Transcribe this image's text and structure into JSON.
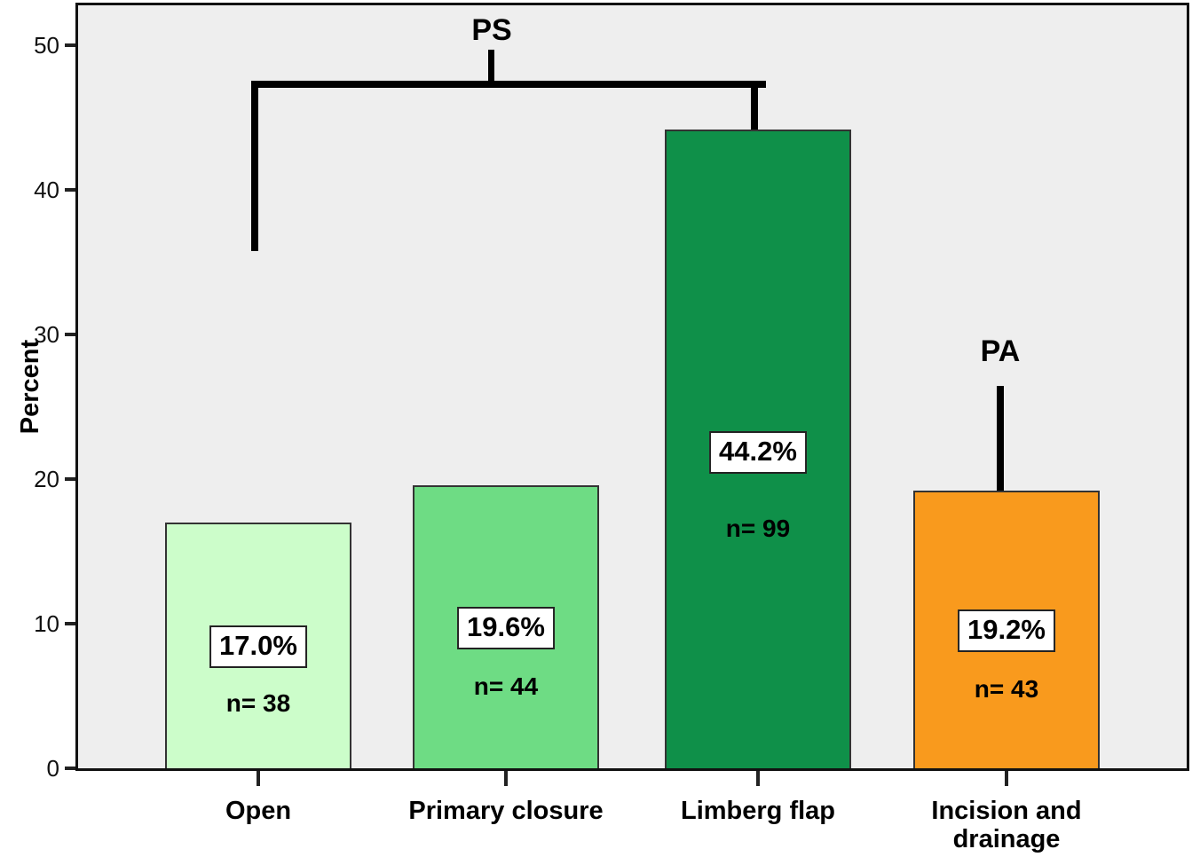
{
  "chart_data": {
    "type": "bar",
    "title": "",
    "ylabel": "Percent",
    "xlabel": "",
    "ylim": [
      0,
      52.7
    ],
    "yticks": [
      0,
      10,
      20,
      30,
      40,
      50
    ],
    "grid": false,
    "legend": false,
    "plot_background": "#eeeeee",
    "categories": [
      "Open",
      "Primary closure",
      "Limberg flap",
      "Incision and drainage"
    ],
    "values": [
      17.0,
      19.6,
      44.2,
      19.2
    ],
    "counts": [
      38,
      44,
      99,
      43
    ],
    "percent_labels": [
      "17.0%",
      "19.6%",
      "44.2%",
      "19.2%"
    ],
    "count_labels": [
      "n= 38",
      "n= 44",
      "n= 99",
      "n= 43"
    ],
    "bar_colors": [
      "#ccfdca",
      "#6edc84",
      "#0f9049",
      "#f99a1d"
    ],
    "annotations": [
      {
        "text": "PS",
        "type": "significance-bracket",
        "connects": [
          "Open",
          "Limberg flap"
        ]
      },
      {
        "text": "PA",
        "type": "significance-line",
        "target": "Incision and drainage"
      }
    ]
  }
}
